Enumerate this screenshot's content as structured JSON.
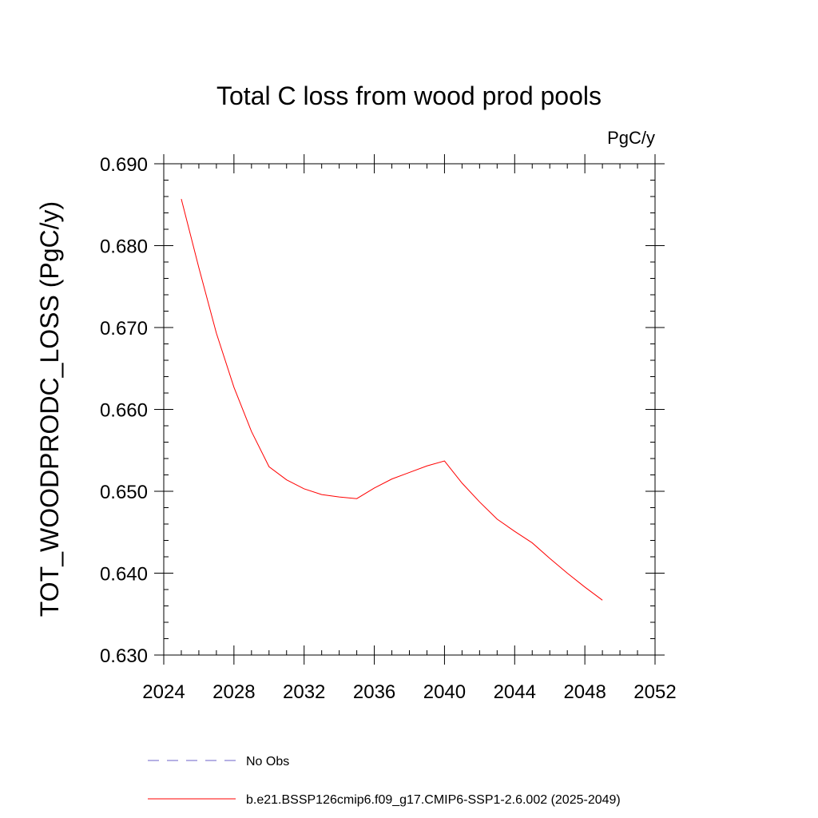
{
  "chart_data": {
    "type": "line",
    "title": "Total C loss from wood prod pools",
    "units": "PgC/y",
    "ylabel": "TOT_WOODPRODC_LOSS  (PgC/y)",
    "xlabel": "",
    "xlim": [
      2024,
      2052
    ],
    "ylim": [
      0.63,
      0.69
    ],
    "xticks": [
      2024,
      2028,
      2032,
      2036,
      2040,
      2044,
      2048,
      2052
    ],
    "yticks": [
      "0.630",
      "0.640",
      "0.650",
      "0.660",
      "0.670",
      "0.680",
      "0.690"
    ],
    "grid": false,
    "legend_position": "bottom",
    "series": [
      {
        "name": "No Obs",
        "color": "#6b62c9",
        "dash": true,
        "values": []
      },
      {
        "name": "b.e21.BSSP126cmip6.f09_g17.CMIP6-SSP1-2.6.002 (2025-2049)",
        "color": "#ff0000",
        "dash": false,
        "x": [
          2025,
          2026,
          2027,
          2028,
          2029,
          2030,
          2031,
          2032,
          2033,
          2034,
          2035,
          2036,
          2037,
          2038,
          2039,
          2040,
          2041,
          2042,
          2043,
          2044,
          2045,
          2046,
          2047,
          2048,
          2049
        ],
        "values": [
          0.6857,
          0.6773,
          0.6693,
          0.6627,
          0.6573,
          0.653,
          0.6514,
          0.6503,
          0.6496,
          0.6493,
          0.6491,
          0.6504,
          0.6515,
          0.6523,
          0.6531,
          0.6537,
          0.651,
          0.6487,
          0.6466,
          0.6451,
          0.6437,
          0.6418,
          0.64,
          0.6383,
          0.6367
        ]
      }
    ]
  }
}
